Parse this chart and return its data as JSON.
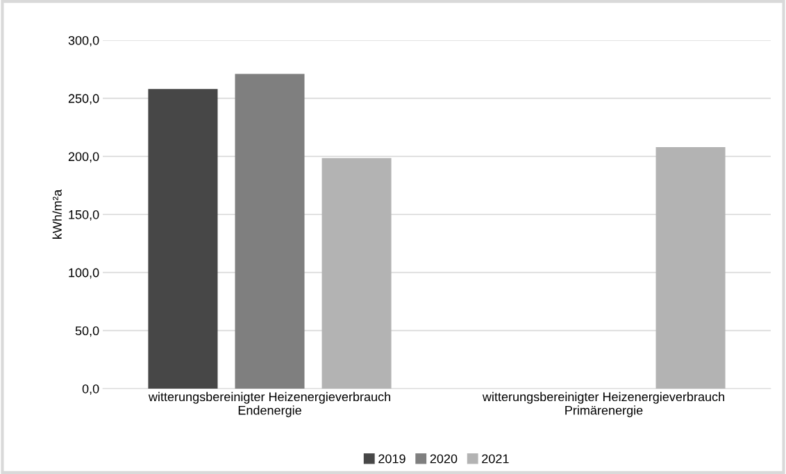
{
  "chart_data": {
    "type": "bar",
    "ylabel": "kWh/m²a",
    "categories": [
      "witterungsbereinigter Heizenergieverbrauch\nEndenergie",
      "witterungsbereinigter Heizenergieverbrauch\nPrimärenergie"
    ],
    "series": [
      {
        "name": "2019",
        "color": "#474747",
        "values": [
          258,
          null
        ]
      },
      {
        "name": "2020",
        "color": "#7f7f7f",
        "values": [
          271,
          null
        ]
      },
      {
        "name": "2021",
        "color": "#b3b3b3",
        "values": [
          198.6,
          208
        ]
      }
    ],
    "ylim": [
      0,
      300
    ],
    "yticks": [
      {
        "value": 0,
        "label": "0,0"
      },
      {
        "value": 50,
        "label": "50,0"
      },
      {
        "value": 100,
        "label": "100,0"
      },
      {
        "value": 150,
        "label": "150,0"
      },
      {
        "value": 200,
        "label": "200,0"
      },
      {
        "value": 250,
        "label": "250,0"
      },
      {
        "value": 300,
        "label": "300,0"
      }
    ],
    "grid": "y",
    "legend": "bottom"
  }
}
